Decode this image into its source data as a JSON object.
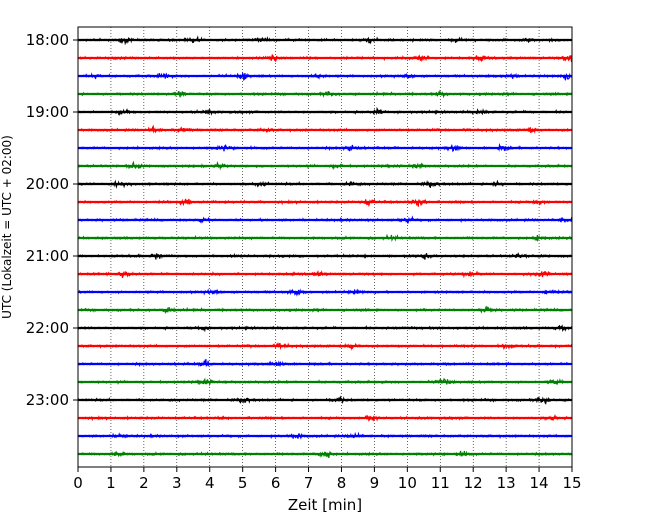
{
  "chart_data": {
    "type": "line",
    "title": "",
    "xlabel": "Zeit  [min]",
    "ylabel": "UTC (Lokalzeit = UTC + 02:00)",
    "xlim": [
      0,
      15
    ],
    "x_ticks": [
      "0",
      "1",
      "2",
      "3",
      "4",
      "5",
      "6",
      "7",
      "8",
      "9",
      "10",
      "11",
      "12",
      "13",
      "14",
      "15"
    ],
    "y_ticks": [
      "18:00",
      "19:00",
      "20:00",
      "21:00",
      "22:00",
      "23:00"
    ],
    "grid": "vertical dotted lines at each minute",
    "trace_interval_min": 15,
    "color_cycle": [
      "#000000",
      "#ff0000",
      "#0000ff",
      "#008000"
    ],
    "series": [
      {
        "start": "18:00",
        "color": "#000000",
        "events": [
          [
            1.4,
            1.8
          ],
          [
            3.5,
            1.4
          ],
          [
            5.6,
            1.6
          ],
          [
            8.9,
            1.5
          ],
          [
            11.5,
            1.7
          ],
          [
            13.7,
            1.5
          ]
        ]
      },
      {
        "start": "18:15",
        "color": "#ff0000",
        "events": [
          [
            5.9,
            3.0
          ],
          [
            10.4,
            2.4
          ],
          [
            12.2,
            1.6
          ],
          [
            14.9,
            2.2
          ]
        ]
      },
      {
        "start": "18:30",
        "color": "#0000ff",
        "events": [
          [
            0.5,
            2.0
          ],
          [
            2.6,
            1.8
          ],
          [
            5.0,
            2.2
          ],
          [
            7.3,
            1.6
          ],
          [
            10.0,
            2.0
          ],
          [
            13.1,
            1.8
          ],
          [
            14.9,
            2.6
          ]
        ]
      },
      {
        "start": "18:45",
        "color": "#008000",
        "events": [
          [
            3.1,
            1.6
          ],
          [
            7.6,
            1.4
          ],
          [
            11.0,
            1.3
          ]
        ]
      },
      {
        "start": "19:00",
        "color": "#000000",
        "events": [
          [
            1.4,
            1.4
          ],
          [
            3.9,
            1.3
          ],
          [
            9.1,
            1.6
          ],
          [
            12.2,
            1.3
          ]
        ]
      },
      {
        "start": "19:15",
        "color": "#ff0000",
        "events": [
          [
            2.3,
            1.7
          ],
          [
            3.2,
            1.6
          ],
          [
            5.7,
            1.3
          ],
          [
            13.8,
            1.8
          ]
        ]
      },
      {
        "start": "19:30",
        "color": "#0000ff",
        "events": [
          [
            4.4,
            1.5
          ],
          [
            8.3,
            2.0
          ],
          [
            11.4,
            1.5
          ],
          [
            12.9,
            1.4
          ]
        ]
      },
      {
        "start": "19:45",
        "color": "#008000",
        "events": [
          [
            1.7,
            1.6
          ],
          [
            4.3,
            1.8
          ],
          [
            7.9,
            1.5
          ],
          [
            10.3,
            1.4
          ]
        ]
      },
      {
        "start": "20:00",
        "color": "#000000",
        "events": [
          [
            1.2,
            2.0
          ],
          [
            5.6,
            1.4
          ],
          [
            8.3,
            1.8
          ],
          [
            10.7,
            2.2
          ],
          [
            12.7,
            1.6
          ]
        ]
      },
      {
        "start": "20:15",
        "color": "#ff0000",
        "events": [
          [
            3.3,
            1.6
          ],
          [
            8.8,
            2.2
          ],
          [
            10.4,
            2.4
          ],
          [
            14.0,
            1.8
          ]
        ]
      },
      {
        "start": "20:30",
        "color": "#0000ff",
        "events": [
          [
            3.8,
            1.6
          ],
          [
            10.0,
            2.0
          ],
          [
            14.8,
            1.6
          ]
        ]
      },
      {
        "start": "20:45",
        "color": "#008000",
        "events": [
          [
            9.5,
            1.3
          ],
          [
            14.0,
            1.5
          ]
        ]
      },
      {
        "start": "21:00",
        "color": "#000000",
        "events": [
          [
            2.4,
            1.5
          ],
          [
            10.6,
            1.8
          ],
          [
            13.4,
            1.6
          ]
        ]
      },
      {
        "start": "21:15",
        "color": "#ff0000",
        "events": [
          [
            1.4,
            2.4
          ],
          [
            7.3,
            1.4
          ],
          [
            11.9,
            1.5
          ],
          [
            14.1,
            2.2
          ]
        ]
      },
      {
        "start": "21:30",
        "color": "#0000ff",
        "events": [
          [
            4.1,
            2.0
          ],
          [
            6.6,
            1.8
          ],
          [
            8.4,
            1.5
          ],
          [
            14.3,
            1.9
          ]
        ]
      },
      {
        "start": "21:45",
        "color": "#008000",
        "events": [
          [
            2.8,
            1.6
          ],
          [
            12.4,
            1.8
          ]
        ]
      },
      {
        "start": "22:00",
        "color": "#000000",
        "events": [
          [
            3.8,
            1.3
          ],
          [
            14.7,
            1.3
          ]
        ]
      },
      {
        "start": "22:15",
        "color": "#ff0000",
        "events": [
          [
            6.2,
            1.4
          ],
          [
            8.3,
            2.0
          ],
          [
            13.0,
            1.8
          ]
        ]
      },
      {
        "start": "22:30",
        "color": "#0000ff",
        "events": [
          [
            3.9,
            2.2
          ],
          [
            6.1,
            1.9
          ]
        ]
      },
      {
        "start": "22:45",
        "color": "#008000",
        "events": [
          [
            3.9,
            1.4
          ],
          [
            11.1,
            2.8
          ],
          [
            14.5,
            1.5
          ]
        ]
      },
      {
        "start": "23:00",
        "color": "#000000",
        "events": [
          [
            5.0,
            2.0
          ],
          [
            7.9,
            1.5
          ],
          [
            14.1,
            2.4
          ]
        ]
      },
      {
        "start": "23:15",
        "color": "#ff0000",
        "events": [
          [
            8.9,
            2.4
          ],
          [
            14.4,
            1.5
          ]
        ]
      },
      {
        "start": "23:30",
        "color": "#0000ff",
        "events": [
          [
            1.3,
            1.4
          ],
          [
            6.6,
            2.0
          ],
          [
            8.4,
            1.7
          ]
        ]
      },
      {
        "start": "23:45",
        "color": "#008000",
        "events": [
          [
            1.2,
            1.6
          ],
          [
            7.5,
            2.8
          ],
          [
            11.7,
            1.5
          ]
        ]
      }
    ]
  }
}
